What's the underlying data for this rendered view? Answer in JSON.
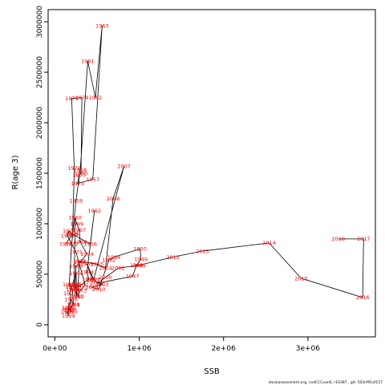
{
  "chart_data": {
    "type": "line",
    "xlabel": "SSB",
    "ylabel": "R(age 3)",
    "xlim": [
      -80000,
      3800000
    ],
    "ylim": [
      -120000,
      3120000
    ],
    "x_ticks": [
      0,
      1000000,
      2000000,
      3000000
    ],
    "x_tick_labels": [
      "0e+00",
      "1e+06",
      "2e+06",
      "3e+06"
    ],
    "y_ticks": [
      0,
      500000,
      1000000,
      1500000,
      2000000,
      2500000,
      3000000
    ],
    "y_tick_labels": [
      "0",
      "500000",
      "1000000",
      "1500000",
      "2000000",
      "2500000",
      "3000000"
    ],
    "line_color": "#000000",
    "label_color": "#ff0000",
    "footnote": "stockassessment.org, codCCCvan6, r10387 , git: 503cf91af157",
    "series": [
      {
        "x": [
          130000,
          210000,
          230000,
          200000,
          320000,
          310000,
          290000,
          270000,
          450000,
          560000,
          480000,
          390000,
          300000,
          250000,
          200000,
          170000,
          210000,
          220000,
          180000,
          160000,
          190000,
          220000,
          150000,
          160000,
          160000,
          190000,
          180000,
          200000,
          250000,
          260000,
          230000,
          240000,
          260000,
          290000,
          300000,
          380000,
          300000,
          250000,
          240000,
          240000,
          400000,
          380000,
          470000,
          420000,
          200000,
          170000,
          150000,
          250000,
          360000,
          300000,
          270000,
          290000,
          500000,
          600000,
          690000,
          820000,
          460000,
          380000,
          450000,
          560000,
          440000,
          520000,
          640000,
          700000,
          1010000,
          1020000,
          970000,
          920000,
          500000,
          600000,
          750000,
          1000000,
          1400000,
          1750000,
          2540000,
          2920000,
          3650000,
          3660000,
          3360000
        ],
        "y": [
          800000,
          900000,
          1550000,
          2240000,
          2250000,
          1500000,
          1480000,
          1400000,
          1440000,
          2960000,
          2250000,
          2610000,
          1530000,
          1230000,
          800000,
          400000,
          350000,
          200000,
          150000,
          170000,
          250000,
          200000,
          130000,
          90000,
          160000,
          130000,
          310000,
          380000,
          510000,
          280000,
          390000,
          1060000,
          1000000,
          940000,
          820000,
          700000,
          620000,
          580000,
          400000,
          350000,
          450000,
          520000,
          1130000,
          800000,
          900000,
          930000,
          880000,
          720000,
          390000,
          340000,
          280000,
          630000,
          600000,
          560000,
          1250000,
          1570000,
          450000,
          600000,
          440000,
          400000,
          370000,
          350000,
          640000,
          670000,
          750000,
          650000,
          590000,
          480000,
          410000,
          470000,
          560000,
          590000,
          670000,
          730000,
          810000,
          460000,
          270000,
          850000,
          850000
        ],
        "labels": [
          "1978",
          "1975",
          "1976",
          "1973",
          "1974",
          "1980",
          "1977",
          "1979",
          "1957",
          "1963",
          "1962",
          "1961",
          "1958",
          "1959",
          "1972",
          "1985",
          "1989",
          "1988",
          "1987",
          "1984",
          "1986",
          "1981",
          "1983",
          "1969",
          "1982",
          "1990",
          "1971",
          "1970",
          "1964",
          "1991",
          "1998",
          "1960",
          "1999",
          "1967",
          "1968",
          "1954",
          "1965",
          "1966",
          "1995",
          "1996",
          "1993",
          "1994",
          "1962",
          "1956",
          "1969",
          "1974",
          "1970",
          "1971",
          "1972",
          "1973",
          "1980",
          "1953",
          "1955",
          "2004",
          "2008",
          "2007",
          "1997",
          "1955",
          "1997",
          "2003",
          "2005",
          "2010",
          "1992",
          "1994",
          "1950",
          "1949",
          "1948",
          "1947",
          "2001",
          "2000",
          "2002",
          "2009",
          "2012",
          "2013",
          "2014",
          "2015",
          "2016",
          "2017",
          "2018"
        ]
      }
    ]
  }
}
